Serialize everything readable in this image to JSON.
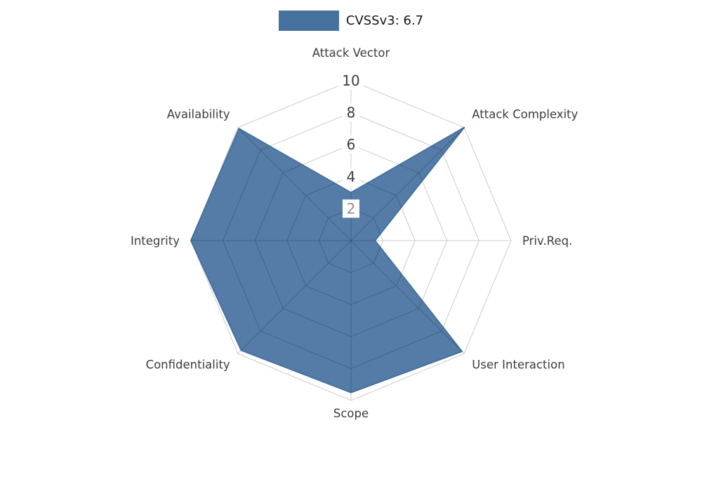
{
  "chart_data": {
    "type": "radar",
    "title": "",
    "legend": {
      "label": "CVSSv3: 6.7",
      "position": "top-center"
    },
    "axes": [
      "Attack Vector",
      "Attack Complexity",
      "Priv.Req.",
      "User Interaction",
      "Scope",
      "Confidentiality",
      "Integrity",
      "Availability"
    ],
    "series": [
      {
        "name": "CVSSv3: 6.7",
        "values": [
          3,
          10,
          1.5,
          9.8,
          9.5,
          9.7,
          10,
          9.9
        ]
      }
    ],
    "radial_ticks": [
      2,
      4,
      6,
      8,
      10
    ],
    "rlim": [
      0,
      10
    ],
    "grid": true,
    "grid_shape": "polygon",
    "legend_swatch_color": "#46719f",
    "colors": {
      "fill": "#46719f",
      "fill_opacity": 0.92,
      "outline": "#46719f",
      "grid": "#cccccc",
      "grid_over_fill": "#2e4a66",
      "grid_over_fill_opacity": 0.45,
      "axis_label": "#3c3c3c",
      "tick_label": "#3d3d3d",
      "tick_label_near_center": "#8f8f8f",
      "tick_label_bg": "#ffffff",
      "legend_text": "#151515"
    }
  }
}
